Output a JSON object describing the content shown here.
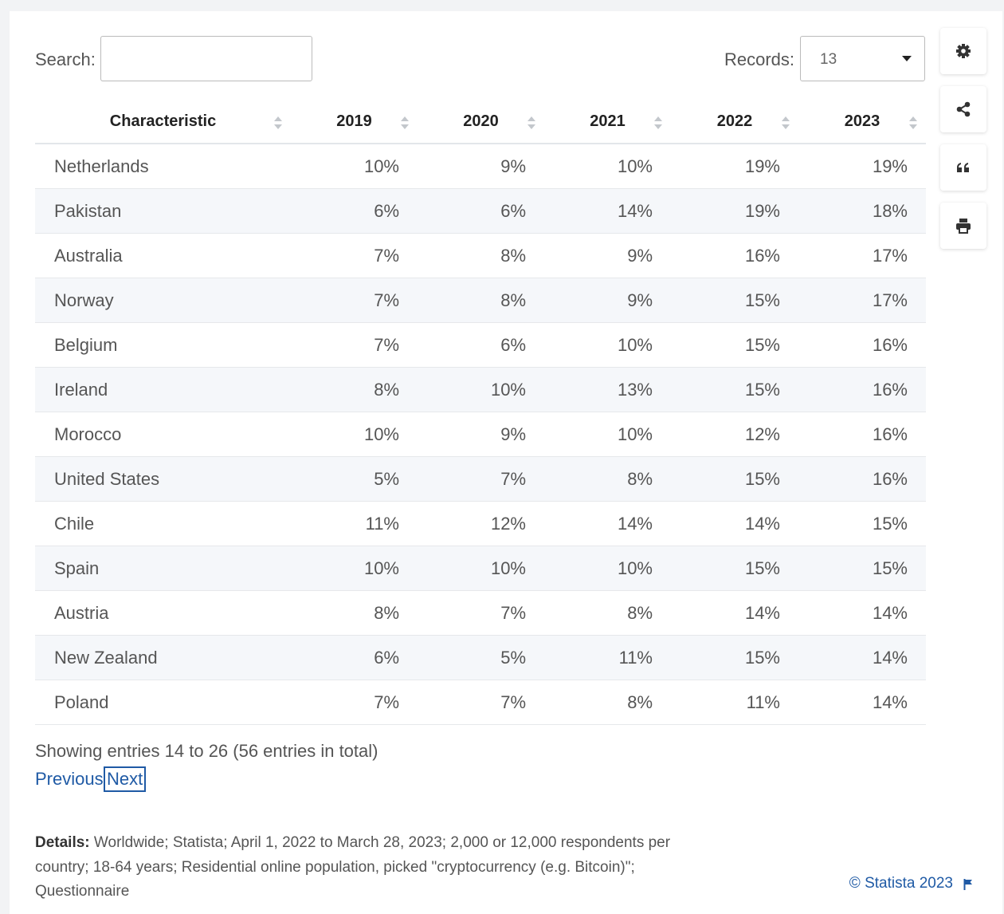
{
  "search_label": "Search:",
  "records_label": "Records:",
  "records_value": "13",
  "table": {
    "headers": [
      "Characteristic",
      "2019",
      "2020",
      "2021",
      "2022",
      "2023"
    ],
    "rows": [
      [
        "Netherlands",
        "10%",
        "9%",
        "10%",
        "19%",
        "19%"
      ],
      [
        "Pakistan",
        "6%",
        "6%",
        "14%",
        "19%",
        "18%"
      ],
      [
        "Australia",
        "7%",
        "8%",
        "9%",
        "16%",
        "17%"
      ],
      [
        "Norway",
        "7%",
        "8%",
        "9%",
        "15%",
        "17%"
      ],
      [
        "Belgium",
        "7%",
        "6%",
        "10%",
        "15%",
        "16%"
      ],
      [
        "Ireland",
        "8%",
        "10%",
        "13%",
        "15%",
        "16%"
      ],
      [
        "Morocco",
        "10%",
        "9%",
        "10%",
        "12%",
        "16%"
      ],
      [
        "United States",
        "5%",
        "7%",
        "8%",
        "15%",
        "16%"
      ],
      [
        "Chile",
        "11%",
        "12%",
        "14%",
        "14%",
        "15%"
      ],
      [
        "Spain",
        "10%",
        "10%",
        "10%",
        "15%",
        "15%"
      ],
      [
        "Austria",
        "8%",
        "7%",
        "8%",
        "14%",
        "14%"
      ],
      [
        "New Zealand",
        "6%",
        "5%",
        "11%",
        "15%",
        "14%"
      ],
      [
        "Poland",
        "7%",
        "7%",
        "8%",
        "11%",
        "14%"
      ]
    ]
  },
  "entries_info": "Showing entries 14 to 26 (56 entries in total)",
  "pagination": {
    "previous": "Previous",
    "next": "Next"
  },
  "details": {
    "label": "Details:",
    "text": "Worldwide; Statista; April 1, 2022 to March 28, 2023; 2,000 or 12,000 respondents per country; 18-64 years; Residential online population, picked \"cryptocurrency (e.g. Bitcoin)\"; Questionnaire"
  },
  "copyright": "© Statista 2023"
}
